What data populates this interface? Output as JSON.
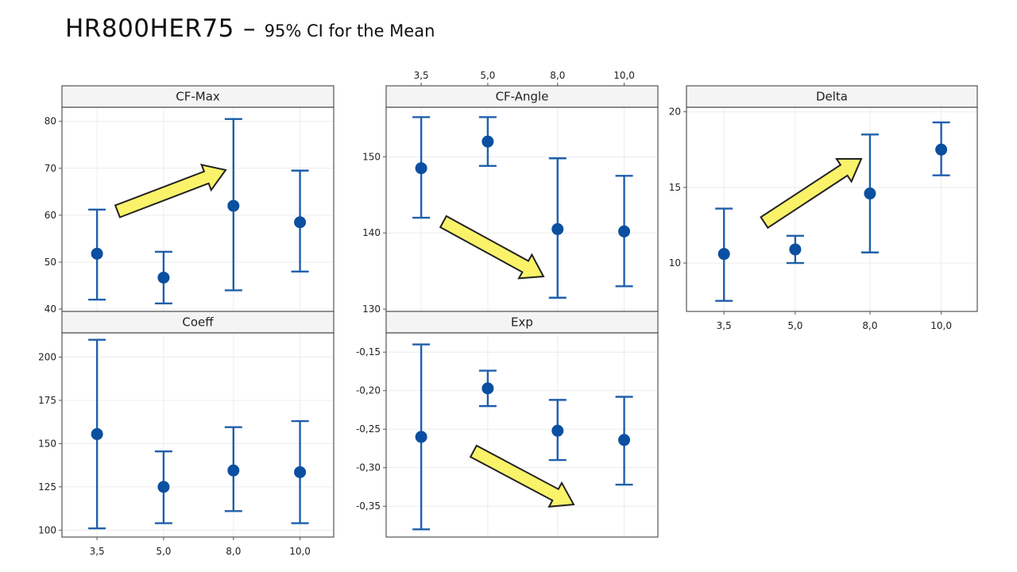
{
  "title": {
    "main": "HR800HER75",
    "dash": "–",
    "sub": "95% CI for the Mean"
  },
  "colors": {
    "series": "#1f5fab",
    "point": "#0b4fa0",
    "arrow_fill": "#faf36a",
    "arrow_stroke": "#222222",
    "grid": "#ececec",
    "frame": "#555555",
    "header_bg": "#f4f4f4"
  },
  "chart_data": [
    {
      "type": "scatter",
      "title": "CF-Max",
      "categories": [
        "3,5",
        "5,0",
        "8,0",
        "10,0"
      ],
      "means": [
        51.8,
        46.7,
        62.0,
        58.5
      ],
      "lower": [
        42.0,
        41.2,
        44.0,
        48.0
      ],
      "upper": [
        61.2,
        52.2,
        80.5,
        69.5
      ],
      "ylim": [
        39.5,
        83
      ],
      "yticks": [
        40,
        50,
        60,
        70,
        80
      ],
      "yticklabels": [
        "40",
        "50",
        "60",
        "70",
        "80"
      ],
      "xticklabels_top": false,
      "xticklabels_bottom": false,
      "grid": true,
      "trend_arrow": "up"
    },
    {
      "type": "scatter",
      "title": "CF-Angle",
      "categories": [
        "3,5",
        "5,0",
        "8,0",
        "10,0"
      ],
      "means": [
        148.5,
        152.0,
        140.5,
        140.2
      ],
      "lower": [
        142.0,
        148.8,
        131.5,
        133.0
      ],
      "upper": [
        155.2,
        155.2,
        149.8,
        147.5
      ],
      "ylim": [
        129.7,
        156.5
      ],
      "yticks": [
        130,
        140,
        150
      ],
      "yticklabels": [
        "130",
        "140",
        "150"
      ],
      "xticklabels_top": true,
      "xticklabels_bottom": false,
      "grid": true,
      "trend_arrow": "down"
    },
    {
      "type": "scatter",
      "title": "Delta",
      "categories": [
        "3,5",
        "5,0",
        "8,0",
        "10,0"
      ],
      "means": [
        10.6,
        10.9,
        14.6,
        17.5
      ],
      "lower": [
        7.5,
        10.0,
        10.7,
        15.8
      ],
      "upper": [
        13.6,
        11.8,
        18.5,
        19.3
      ],
      "ylim": [
        6.8,
        20.3
      ],
      "yticks": [
        10,
        15,
        20
      ],
      "yticklabels": [
        "10",
        "15",
        "20"
      ],
      "xticklabels_top": false,
      "xticklabels_bottom": true,
      "grid": true,
      "trend_arrow": "up"
    },
    {
      "type": "scatter",
      "title": "Coeff",
      "categories": [
        "3,5",
        "5,0",
        "8,0",
        "10,0"
      ],
      "means": [
        155.5,
        125.0,
        134.5,
        133.5
      ],
      "lower": [
        101.0,
        104.0,
        111.0,
        104.0
      ],
      "upper": [
        210.0,
        145.5,
        159.5,
        163.0
      ],
      "ylim": [
        96,
        214
      ],
      "yticks": [
        100,
        125,
        150,
        175,
        200
      ],
      "yticklabels": [
        "100",
        "125",
        "150",
        "175",
        "200"
      ],
      "xticklabels_top": false,
      "xticklabels_bottom": true,
      "grid": true,
      "trend_arrow": null
    },
    {
      "type": "scatter",
      "title": "Exp",
      "categories": [
        "3,5",
        "5,0",
        "8,0",
        "10,0"
      ],
      "means": [
        -0.26,
        -0.197,
        -0.252,
        -0.264
      ],
      "lower": [
        -0.38,
        -0.22,
        -0.29,
        -0.322
      ],
      "upper": [
        -0.14,
        -0.174,
        -0.212,
        -0.208
      ],
      "ylim": [
        -0.39,
        -0.125
      ],
      "yticks": [
        -0.35,
        -0.3,
        -0.25,
        -0.2,
        -0.15
      ],
      "yticklabels": [
        "-0,35",
        "-0,30",
        "-0,25",
        "-0,20",
        "-0,15"
      ],
      "xticklabels_top": false,
      "xticklabels_bottom": false,
      "grid": true,
      "trend_arrow": "down"
    }
  ]
}
